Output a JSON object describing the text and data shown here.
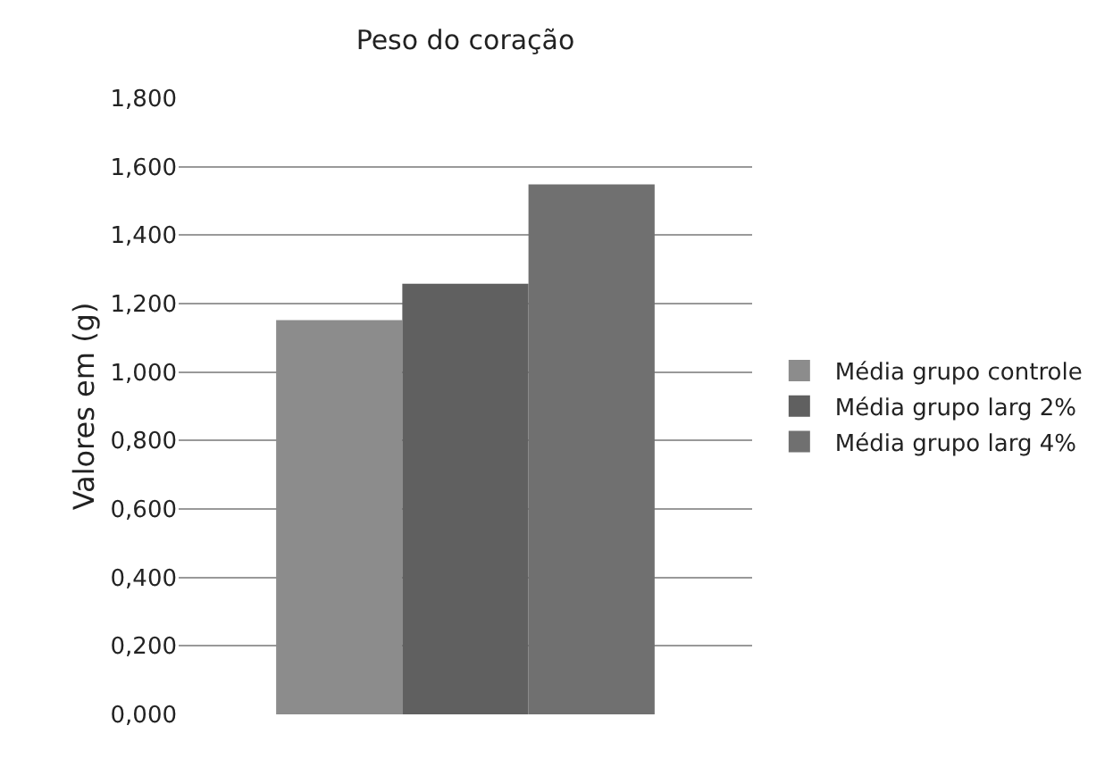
{
  "chart_data": {
    "type": "bar",
    "title": "Peso do coração",
    "ylabel": "Valores em (g)",
    "categories": [
      null
    ],
    "series": [
      {
        "name": "Média grupo controle",
        "color": "#8c8c8c",
        "values": [
          1.152
        ]
      },
      {
        "name": "Média grupo larg 2%",
        "color": "#606060",
        "values": [
          1.258
        ]
      },
      {
        "name": "Média grupo larg 4%",
        "color": "#707070",
        "values": [
          1.548
        ]
      }
    ],
    "ylim": [
      0,
      1.8
    ],
    "yticks": [
      {
        "value": 0,
        "label": "0,000"
      },
      {
        "value": 0.2,
        "label": "0,200"
      },
      {
        "value": 0.4,
        "label": "0,400"
      },
      {
        "value": 0.6,
        "label": "0,600"
      },
      {
        "value": 0.8,
        "label": "0,800"
      },
      {
        "value": 1.0,
        "label": "1,000"
      },
      {
        "value": 1.2,
        "label": "1,200"
      },
      {
        "value": 1.4,
        "label": "1,400"
      },
      {
        "value": 1.6,
        "label": "1,600"
      },
      {
        "value": 1.8,
        "label": "1,800"
      }
    ],
    "grid": "y",
    "legend": "right",
    "tick_labels": "y"
  }
}
